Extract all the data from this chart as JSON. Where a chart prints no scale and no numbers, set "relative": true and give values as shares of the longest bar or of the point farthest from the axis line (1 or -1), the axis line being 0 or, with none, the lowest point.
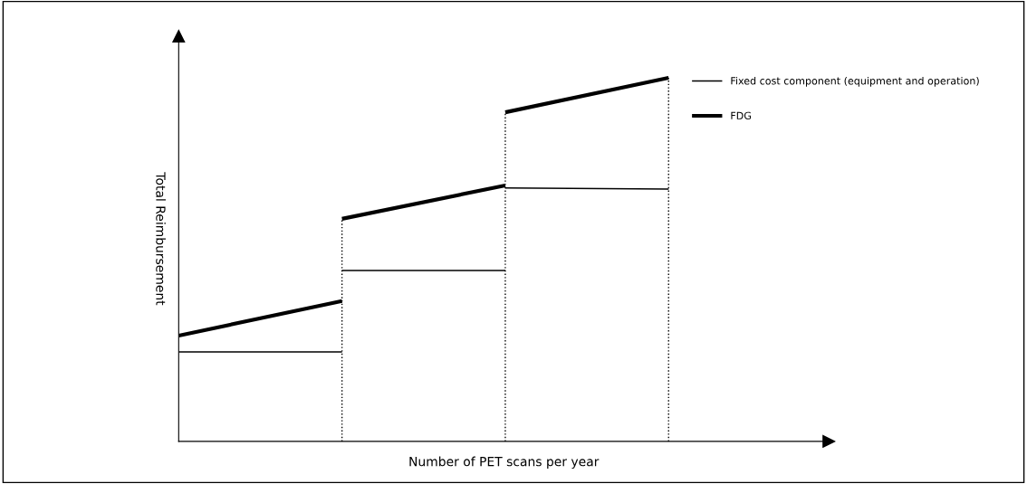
{
  "chart_data": {
    "type": "line",
    "relative": true,
    "xlabel": "Number of PET scans per year",
    "ylabel": "Total Reimbursement",
    "categories": [
      null,
      null,
      null,
      null
    ],
    "series": [
      {
        "name": "Fixed cost component (equipment and operation)",
        "color": "#000000",
        "values": [
          0.246,
          0.246,
          null,
          null
        ]
      },
      {
        "color": "#000000",
        "values": [
          null,
          0.47,
          0.47,
          null
        ]
      },
      {
        "color": "#000000",
        "values": [
          null,
          null,
          0.697,
          0.694
        ]
      },
      {
        "name": "FDG",
        "color": "#000000",
        "values": [
          0.291,
          0.386,
          null,
          null
        ]
      },
      {
        "color": "#000000",
        "values": [
          null,
          0.612,
          0.704,
          null
        ]
      },
      {
        "color": "#000000",
        "values": [
          null,
          null,
          0.905,
          1.0
        ]
      }
    ],
    "legend": "top right",
    "marker": "none",
    "line_style": "solid"
  }
}
